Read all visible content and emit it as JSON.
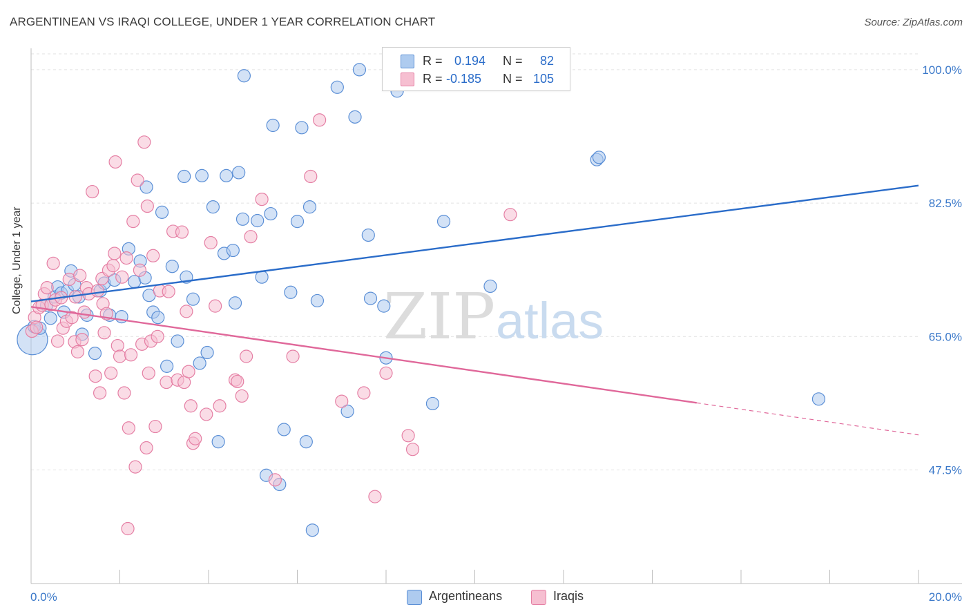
{
  "title": "ARGENTINEAN VS IRAQI COLLEGE, UNDER 1 YEAR CORRELATION CHART",
  "source": "Source: ZipAtlas.com",
  "watermark": {
    "zip": "ZIP",
    "atlas": "atlas"
  },
  "stats": {
    "r_label": "R =",
    "n_label": "N =",
    "rows": [
      {
        "series": "Argentineans",
        "r": "0.194",
        "n": "82"
      },
      {
        "series": "Iraqis",
        "r": "-0.185",
        "n": "105"
      }
    ]
  },
  "colors": {
    "blue_fill": "#aecbef",
    "blue_stroke": "#5b8fd6",
    "blue_line": "#2a6cc9",
    "pink_fill": "#f6bfd1",
    "pink_stroke": "#e57fa4",
    "pink_line": "#e0689a",
    "axis_text": "#3a78c9",
    "grid": "#e2e2e2"
  },
  "chart_data": {
    "type": "scatter",
    "title": "ARGENTINEAN VS IRAQI COLLEGE, UNDER 1 YEAR CORRELATION CHART",
    "xlabel": "",
    "ylabel": "College, Under 1 year",
    "xlim": [
      0,
      20
    ],
    "ylim": [
      32.6,
      102.8
    ],
    "x_tick_labels": [
      "0.0%",
      "20.0%"
    ],
    "y_ticks": [
      47.5,
      65.0,
      82.5,
      100.0
    ],
    "y_tick_labels": [
      "47.5%",
      "65.0%",
      "82.5%",
      "100.0%"
    ],
    "grid": true,
    "legend": "bottom-center",
    "series": [
      {
        "name": "Argentineans",
        "points": [
          [
            0.03,
            64.6
          ],
          [
            0.07,
            66.3
          ],
          [
            0.2,
            66.1
          ],
          [
            0.35,
            69.1
          ],
          [
            0.44,
            67.4
          ],
          [
            0.52,
            70.2
          ],
          [
            0.6,
            71.5
          ],
          [
            0.68,
            70.7
          ],
          [
            0.74,
            68.2
          ],
          [
            0.82,
            71.0
          ],
          [
            0.9,
            73.6
          ],
          [
            0.98,
            71.8
          ],
          [
            1.08,
            70.2
          ],
          [
            1.15,
            65.3
          ],
          [
            1.26,
            67.8
          ],
          [
            1.44,
            62.8
          ],
          [
            1.56,
            71.0
          ],
          [
            1.65,
            72.0
          ],
          [
            1.77,
            67.8
          ],
          [
            1.88,
            72.4
          ],
          [
            2.04,
            67.6
          ],
          [
            2.2,
            76.5
          ],
          [
            2.33,
            72.2
          ],
          [
            2.46,
            74.9
          ],
          [
            2.57,
            72.7
          ],
          [
            2.6,
            84.6
          ],
          [
            2.66,
            70.4
          ],
          [
            2.75,
            68.2
          ],
          [
            2.86,
            67.5
          ],
          [
            2.95,
            81.3
          ],
          [
            3.06,
            61.1
          ],
          [
            3.18,
            74.2
          ],
          [
            3.3,
            64.4
          ],
          [
            3.45,
            86.0
          ],
          [
            3.5,
            72.8
          ],
          [
            3.65,
            69.9
          ],
          [
            3.8,
            61.5
          ],
          [
            3.85,
            86.1
          ],
          [
            3.97,
            62.9
          ],
          [
            4.1,
            82.0
          ],
          [
            4.22,
            51.2
          ],
          [
            4.35,
            75.9
          ],
          [
            4.4,
            86.1
          ],
          [
            4.55,
            76.3
          ],
          [
            4.6,
            69.4
          ],
          [
            4.68,
            86.5
          ],
          [
            4.77,
            80.4
          ],
          [
            4.8,
            99.2
          ],
          [
            5.1,
            80.2
          ],
          [
            5.2,
            72.8
          ],
          [
            5.3,
            46.8
          ],
          [
            5.4,
            81.1
          ],
          [
            5.45,
            92.7
          ],
          [
            5.6,
            45.6
          ],
          [
            5.7,
            52.8
          ],
          [
            5.85,
            70.8
          ],
          [
            6.0,
            80.1
          ],
          [
            6.1,
            92.4
          ],
          [
            6.2,
            51.2
          ],
          [
            6.28,
            82.0
          ],
          [
            6.34,
            39.6
          ],
          [
            6.45,
            69.7
          ],
          [
            6.9,
            97.7
          ],
          [
            7.13,
            55.2
          ],
          [
            7.3,
            93.8
          ],
          [
            7.4,
            100.0
          ],
          [
            7.6,
            78.3
          ],
          [
            7.65,
            70.0
          ],
          [
            7.95,
            69.0
          ],
          [
            8.0,
            62.2
          ],
          [
            8.25,
            97.2
          ],
          [
            9.05,
            56.2
          ],
          [
            9.3,
            80.1
          ],
          [
            9.45,
            100.0
          ],
          [
            10.35,
            71.6
          ],
          [
            12.75,
            88.2
          ],
          [
            12.8,
            88.5
          ],
          [
            17.75,
            56.8
          ]
        ]
      },
      {
        "name": "Iraqis",
        "points": [
          [
            0.02,
            65.7
          ],
          [
            0.08,
            67.5
          ],
          [
            0.12,
            66.2
          ],
          [
            0.18,
            68.8
          ],
          [
            0.25,
            69.1
          ],
          [
            0.3,
            70.6
          ],
          [
            0.36,
            71.4
          ],
          [
            0.45,
            69.2
          ],
          [
            0.5,
            74.6
          ],
          [
            0.55,
            69.8
          ],
          [
            0.6,
            64.4
          ],
          [
            0.68,
            70.1
          ],
          [
            0.72,
            66.1
          ],
          [
            0.8,
            67.0
          ],
          [
            0.86,
            72.5
          ],
          [
            0.92,
            67.5
          ],
          [
            0.98,
            64.3
          ],
          [
            1.0,
            70.2
          ],
          [
            1.05,
            63.0
          ],
          [
            1.1,
            73.0
          ],
          [
            1.15,
            64.6
          ],
          [
            1.2,
            68.2
          ],
          [
            1.25,
            71.4
          ],
          [
            1.3,
            70.6
          ],
          [
            1.38,
            84.0
          ],
          [
            1.45,
            59.8
          ],
          [
            1.5,
            71.0
          ],
          [
            1.55,
            57.6
          ],
          [
            1.6,
            72.6
          ],
          [
            1.62,
            69.3
          ],
          [
            1.65,
            65.5
          ],
          [
            1.7,
            68.0
          ],
          [
            1.75,
            73.7
          ],
          [
            1.8,
            60.2
          ],
          [
            1.85,
            74.3
          ],
          [
            1.88,
            75.9
          ],
          [
            1.9,
            87.9
          ],
          [
            1.95,
            63.8
          ],
          [
            2.0,
            62.4
          ],
          [
            2.05,
            72.8
          ],
          [
            2.1,
            57.6
          ],
          [
            2.15,
            75.3
          ],
          [
            2.18,
            39.8
          ],
          [
            2.2,
            53.0
          ],
          [
            2.25,
            62.6
          ],
          [
            2.3,
            80.1
          ],
          [
            2.35,
            47.9
          ],
          [
            2.4,
            85.5
          ],
          [
            2.45,
            73.7
          ],
          [
            2.5,
            64.0
          ],
          [
            2.55,
            90.5
          ],
          [
            2.6,
            50.4
          ],
          [
            2.62,
            82.1
          ],
          [
            2.65,
            60.2
          ],
          [
            2.7,
            64.4
          ],
          [
            2.75,
            75.6
          ],
          [
            2.8,
            53.2
          ],
          [
            2.85,
            65.0
          ],
          [
            2.9,
            71.0
          ],
          [
            3.05,
            59.0
          ],
          [
            3.1,
            70.9
          ],
          [
            3.2,
            78.8
          ],
          [
            3.3,
            59.3
          ],
          [
            3.4,
            78.7
          ],
          [
            3.45,
            59.0
          ],
          [
            3.5,
            68.3
          ],
          [
            3.55,
            60.4
          ],
          [
            3.6,
            55.9
          ],
          [
            3.65,
            51.0
          ],
          [
            3.7,
            51.6
          ],
          [
            3.95,
            54.8
          ],
          [
            4.05,
            77.3
          ],
          [
            4.15,
            69.0
          ],
          [
            4.25,
            55.9
          ],
          [
            4.6,
            59.3
          ],
          [
            4.65,
            59.1
          ],
          [
            4.75,
            57.2
          ],
          [
            4.85,
            62.4
          ],
          [
            4.95,
            78.1
          ],
          [
            5.2,
            83.0
          ],
          [
            5.5,
            46.2
          ],
          [
            5.9,
            62.4
          ],
          [
            6.3,
            86.0
          ],
          [
            6.5,
            93.4
          ],
          [
            7.0,
            56.5
          ],
          [
            7.5,
            57.6
          ],
          [
            7.75,
            44.0
          ],
          [
            8.0,
            60.2
          ],
          [
            8.5,
            52.0
          ],
          [
            8.6,
            50.2
          ],
          [
            10.8,
            81.0
          ]
        ]
      }
    ],
    "trend_lines": [
      {
        "series": "Argentineans",
        "x": [
          0,
          20
        ],
        "y": [
          69.6,
          84.8
        ]
      },
      {
        "series": "Iraqis",
        "x": [
          0,
          15
        ],
        "y": [
          68.9,
          56.3
        ],
        "dashed_extension": {
          "x": [
            15,
            20
          ],
          "y": [
            56.3,
            52.1
          ]
        }
      }
    ]
  }
}
